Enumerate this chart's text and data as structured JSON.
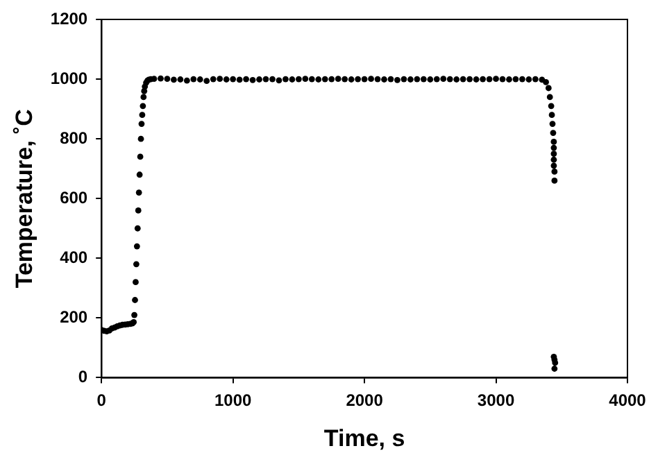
{
  "chart_data": {
    "type": "scatter",
    "xlabel": "Time, s",
    "ylabel": "Temperature, ˚C",
    "xlim": [
      0,
      4000
    ],
    "xticks": [
      0,
      1000,
      2000,
      3000,
      4000
    ],
    "ylim": [
      0,
      1200
    ],
    "yticks": [
      0,
      200,
      400,
      600,
      800,
      1000,
      1200
    ],
    "grid": false,
    "legend": false,
    "marker": "circle",
    "series": [
      {
        "color": "#000000",
        "x": [
          0,
          20,
          40,
          60,
          80,
          100,
          120,
          140,
          160,
          180,
          200,
          220,
          235,
          245,
          250,
          255,
          260,
          265,
          270,
          275,
          280,
          285,
          290,
          295,
          300,
          305,
          310,
          315,
          320,
          325,
          330,
          340,
          350,
          360,
          375,
          400,
          450,
          500,
          550,
          600,
          650,
          700,
          750,
          800,
          850,
          900,
          950,
          1000,
          1050,
          1100,
          1150,
          1200,
          1250,
          1300,
          1350,
          1400,
          1450,
          1500,
          1550,
          1600,
          1650,
          1700,
          1750,
          1800,
          1850,
          1900,
          1950,
          2000,
          2050,
          2100,
          2150,
          2200,
          2250,
          2300,
          2350,
          2400,
          2450,
          2500,
          2550,
          2600,
          2650,
          2700,
          2750,
          2800,
          2850,
          2900,
          2950,
          3000,
          3050,
          3100,
          3150,
          3200,
          3250,
          3300,
          3350,
          3380,
          3400,
          3410,
          3420,
          3425,
          3430,
          3435,
          3440,
          3440,
          3440,
          3440,
          3440,
          3445,
          3445,
          3440,
          3445,
          3450,
          3445
        ],
        "values": [
          160,
          157,
          155,
          158,
          165,
          168,
          172,
          175,
          177,
          178,
          179,
          180,
          182,
          186,
          210,
          260,
          320,
          380,
          440,
          500,
          560,
          620,
          680,
          740,
          800,
          850,
          880,
          910,
          940,
          960,
          975,
          988,
          995,
          998,
          1000,
          1001,
          1002,
          1001,
          998,
          999,
          995,
          1000,
          999,
          994,
          1000,
          1001,
          999,
          1000,
          998,
          1000,
          997,
          999,
          1000,
          1000,
          996,
          1000,
          999,
          1000,
          1001,
          1000,
          999,
          1000,
          1000,
          1001,
          1000,
          999,
          1000,
          1000,
          1001,
          1000,
          999,
          1000,
          997,
          1000,
          999,
          1000,
          1000,
          999,
          1000,
          1001,
          1000,
          999,
          1000,
          1000,
          999,
          1000,
          1000,
          1001,
          1000,
          999,
          1000,
          1000,
          999,
          1000,
          998,
          990,
          970,
          940,
          910,
          880,
          850,
          820,
          790,
          770,
          750,
          730,
          710,
          690,
          660,
          70,
          60,
          50,
          30
        ]
      }
    ]
  }
}
